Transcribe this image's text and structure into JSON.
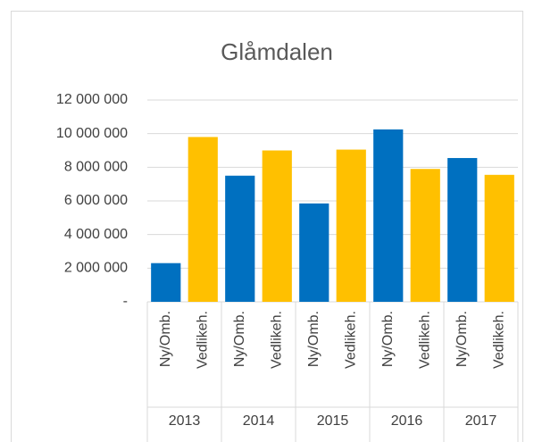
{
  "chart_data": {
    "type": "bar",
    "title": "Glåmdalen",
    "groups": [
      "2013",
      "2014",
      "2015",
      "2016",
      "2017"
    ],
    "categories": [
      "Ny/Omb.",
      "Vedlikeh.",
      "Ny/Omb.",
      "Vedlikeh.",
      "Ny/Omb.",
      "Vedlikeh.",
      "Ny/Omb.",
      "Vedlikeh.",
      "Ny/Omb.",
      "Vedlikeh."
    ],
    "values": [
      2300000,
      9800000,
      7500000,
      9000000,
      5850000,
      9050000,
      10250000,
      7900000,
      8550000,
      7550000
    ],
    "colors": [
      "#0070c0",
      "#ffc000",
      "#0070c0",
      "#ffc000",
      "#0070c0",
      "#ffc000",
      "#0070c0",
      "#ffc000",
      "#0070c0",
      "#ffc000"
    ],
    "ylim": [
      0,
      12000000
    ],
    "yticks": [
      {
        "value": 0,
        "label": "-"
      },
      {
        "value": 2000000,
        "label": "2 000 000"
      },
      {
        "value": 4000000,
        "label": "4 000 000"
      },
      {
        "value": 6000000,
        "label": "6 000 000"
      },
      {
        "value": 8000000,
        "label": "8 000 000"
      },
      {
        "value": 10000000,
        "label": "10 000 000"
      },
      {
        "value": 12000000,
        "label": "12 000 000"
      }
    ],
    "grid": true
  }
}
